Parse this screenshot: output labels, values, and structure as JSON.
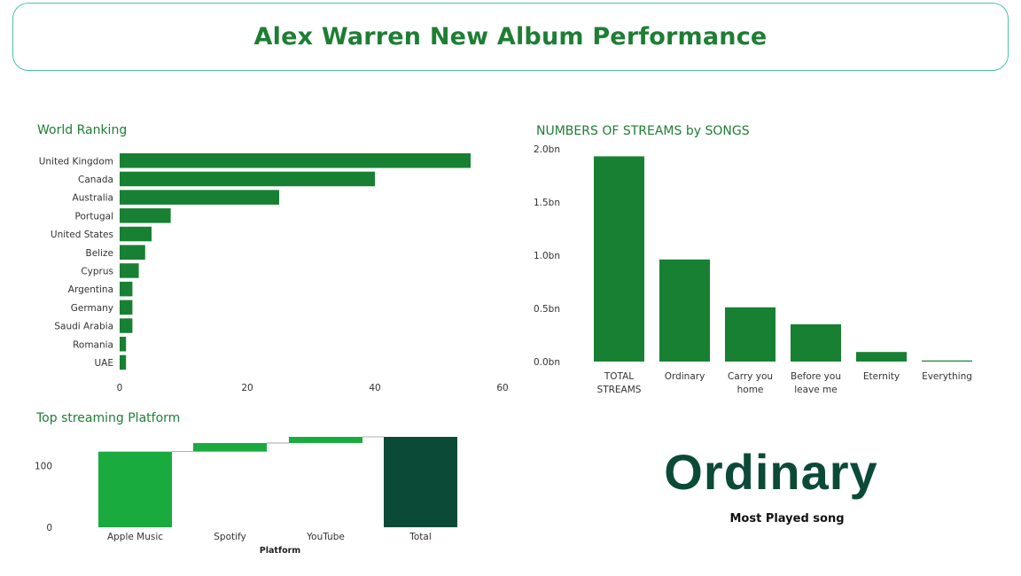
{
  "header": {
    "title": "Alex Warren New Album Performance"
  },
  "colors": {
    "bar": "#188032",
    "accent": "#1aab3e",
    "dark": "#0b4a37",
    "title": "#1e7e34",
    "border": "#4cc3a7"
  },
  "chart_data": [
    {
      "id": "world-ranking",
      "type": "bar",
      "orientation": "horizontal",
      "title": "World Ranking",
      "categories": [
        "United Kingdom",
        "Canada",
        "Australia",
        "Portugal",
        "United States",
        "Belize",
        "Cyprus",
        "Argentina",
        "Germany",
        "Saudi Arabia",
        "Romania",
        "UAE"
      ],
      "values": [
        55,
        40,
        25,
        8,
        5,
        4,
        3,
        2,
        2,
        2,
        1,
        1
      ],
      "xlim": [
        0,
        60
      ],
      "ticks": [
        "0",
        "20",
        "40",
        "60"
      ],
      "grid": false
    },
    {
      "id": "streams-by-songs",
      "type": "bar",
      "title": "NUMBERS OF STREAMS by SONGS",
      "categories": [
        "TOTAL STREAMS",
        "Ordinary",
        "Carry you home",
        "Before you leave me",
        "Eternity",
        "Everything"
      ],
      "values": [
        1.93,
        0.96,
        0.51,
        0.35,
        0.09,
        0.01
      ],
      "unit": "bn",
      "ylim": [
        0,
        2.0
      ],
      "ticks": [
        "0.0bn",
        "0.5bn",
        "1.0bn",
        "1.5bn",
        "2.0bn"
      ],
      "grid": false
    },
    {
      "id": "top-streaming-platform",
      "type": "waterfall",
      "title": "Top streaming Platform",
      "xlabel": "Platform",
      "categories": [
        "Apple Music",
        "Spotify",
        "YouTube",
        "Total"
      ],
      "values": [
        123,
        14,
        10,
        147
      ],
      "ylim": [
        0,
        147
      ],
      "ticks": [
        "0",
        "100"
      ],
      "grid": false
    }
  ],
  "card": {
    "value": "Ordinary",
    "label": "Most Played song"
  }
}
